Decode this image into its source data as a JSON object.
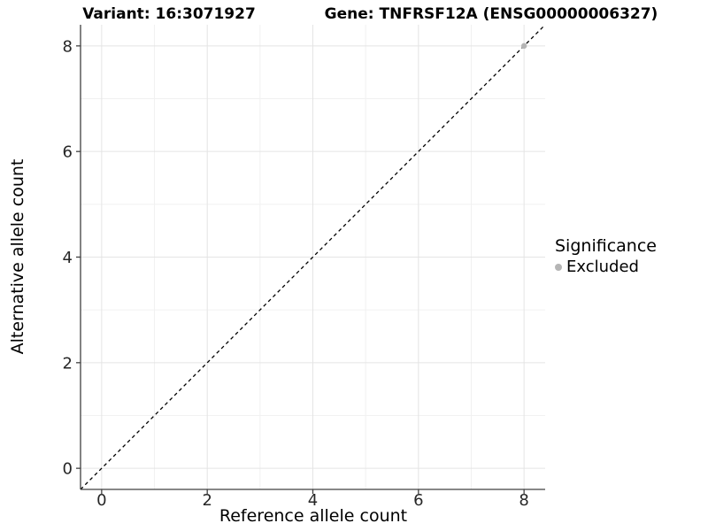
{
  "titles": {
    "variant": "Variant: 16:3071927",
    "gene": "Gene: TNFRSF12A (ENSG00000006327)"
  },
  "legend": {
    "title": "Significance",
    "items": [
      {
        "label": "Excluded",
        "color": "#b5b5b5"
      }
    ]
  },
  "chart_data": {
    "type": "scatter",
    "title_left": "Variant: 16:3071927",
    "title_right": "Gene: TNFRSF12A (ENSG00000006327)",
    "xlabel": "Reference allele count",
    "ylabel": "Alternative allele count",
    "xlim": [
      -0.4,
      8.4
    ],
    "ylim": [
      -0.4,
      8.4
    ],
    "x_major_ticks": [
      0,
      2,
      4,
      6,
      8
    ],
    "y_major_ticks": [
      0,
      2,
      4,
      6,
      8
    ],
    "x_minor_gridlines": [
      1,
      3,
      5,
      7
    ],
    "y_minor_gridlines": [
      1,
      3,
      5,
      7
    ],
    "grid": "major and minor gridlines on white panel",
    "legend_position": "right",
    "legend_title": "Significance",
    "series": [
      {
        "name": "Excluded",
        "color": "#b5b5b5",
        "marker": "circle",
        "points": [
          [
            8,
            8
          ]
        ]
      }
    ],
    "reference_line": {
      "type": "identity y=x",
      "style": "dashed",
      "color": "#000000",
      "span": [
        [
          -0.4,
          -0.4
        ],
        [
          8.4,
          8.4
        ]
      ]
    }
  },
  "colors": {
    "background": "#ffffff",
    "grid_major": "#e4e4e4",
    "grid_minor": "#f1f1f1",
    "axis_line": "#404040",
    "tick_label": "#262626",
    "excluded_point": "#b5b5b5"
  }
}
